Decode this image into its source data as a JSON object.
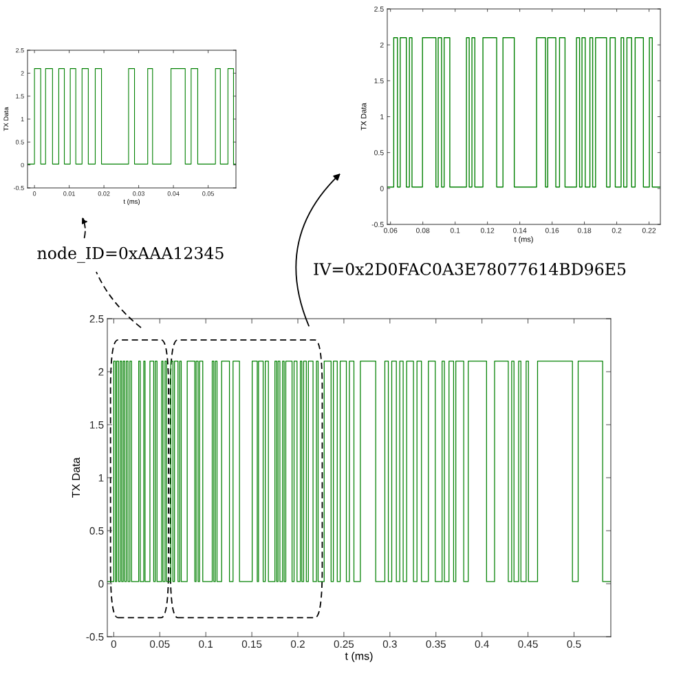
{
  "chart_data": [
    {
      "type": "step",
      "color": "#008000",
      "xlabel": "t (ms)",
      "ylabel": "TX Data",
      "xlim": [
        -0.002,
        0.058
      ],
      "xticks": [
        0,
        0.01,
        0.02,
        0.03,
        0.04,
        0.05
      ],
      "ylim": [
        -0.5,
        2.5
      ],
      "yticks": [
        -0.5,
        0,
        0.5,
        1,
        1.5,
        2,
        2.5
      ],
      "x": [
        -0.002,
        0,
        0.0018,
        0.0032,
        0.0052,
        0.007,
        0.0086,
        0.0103,
        0.0119,
        0.0137,
        0.0155,
        0.0175,
        0.0193,
        0.0271,
        0.0288,
        0.0326,
        0.034,
        0.0393,
        0.0434,
        0.0451,
        0.047,
        0.0521,
        0.0535,
        0.0557,
        0.0573,
        0.058
      ],
      "values": [
        0.02,
        2.1,
        0.02,
        2.1,
        0.02,
        2.1,
        0.02,
        2.1,
        0.02,
        2.1,
        0.02,
        2.1,
        0.02,
        2.1,
        0.02,
        2.1,
        0.02,
        2.1,
        0.02,
        2.1,
        0.02,
        2.1,
        0.02,
        2.1,
        0.02,
        0.02
      ]
    },
    {
      "type": "step",
      "color": "#008000",
      "xlabel": "t (ms)",
      "ylabel": "TX Data",
      "xlim": [
        0.058,
        0.227
      ],
      "xticks": [
        0.06,
        0.08,
        0.1,
        0.12,
        0.14,
        0.16,
        0.18,
        0.2,
        0.22
      ],
      "ylim": [
        -0.5,
        2.5
      ],
      "yticks": [
        -0.5,
        0,
        0.5,
        1,
        1.5,
        2,
        2.5
      ],
      "x": [
        0.058,
        0.062,
        0.0643,
        0.066,
        0.0698,
        0.0717,
        0.0733,
        0.0798,
        0.0881,
        0.0895,
        0.0916,
        0.0932,
        0.0967,
        0.107,
        0.1087,
        0.1104,
        0.1122,
        0.1172,
        0.1257,
        0.1296,
        0.1366,
        0.1504,
        0.1559,
        0.1573,
        0.1623,
        0.1646,
        0.168,
        0.1751,
        0.177,
        0.1785,
        0.1805,
        0.1834,
        0.1851,
        0.1869,
        0.1937,
        0.1959,
        0.1991,
        0.2027,
        0.2043,
        0.2063,
        0.2092,
        0.2114,
        0.2165,
        0.2202,
        0.222,
        0.227
      ],
      "values": [
        0.02,
        2.1,
        0.02,
        2.1,
        0.02,
        2.1,
        0.02,
        2.1,
        0.02,
        2.1,
        0.02,
        2.1,
        0.02,
        2.1,
        0.02,
        2.1,
        0.02,
        2.1,
        0.02,
        2.1,
        0.02,
        2.1,
        0.02,
        2.1,
        0.02,
        2.1,
        0.02,
        2.1,
        0.02,
        2.1,
        0.02,
        2.1,
        0.02,
        2.1,
        0.02,
        2.1,
        0.02,
        2.1,
        0.02,
        2.1,
        0.02,
        2.1,
        0.02,
        2.1,
        0.02,
        0.02
      ]
    },
    {
      "type": "step",
      "color": "#008000",
      "xlabel": "t (ms)",
      "ylabel": "TX Data",
      "xlim": [
        -0.007,
        0.54
      ],
      "xticks": [
        0,
        0.05,
        0.1,
        0.15,
        0.2,
        0.25,
        0.3,
        0.35,
        0.4,
        0.45,
        0.5
      ],
      "ylim": [
        -0.5,
        2.5
      ],
      "yticks": [
        -0.5,
        0,
        0.5,
        1,
        1.5,
        2,
        2.5
      ],
      "annotations": [
        "node_ID=0xAAA12345",
        "IV=0x2D0FAC0A3E78077614BD96E5"
      ],
      "x": [
        -0.007,
        0,
        0.0018,
        0.0032,
        0.0052,
        0.007,
        0.0086,
        0.0103,
        0.0119,
        0.0137,
        0.0155,
        0.0175,
        0.0193,
        0.0271,
        0.0288,
        0.0326,
        0.034,
        0.0393,
        0.0434,
        0.0451,
        0.047,
        0.0521,
        0.0535,
        0.0557,
        0.0573,
        0.062,
        0.0643,
        0.066,
        0.0698,
        0.0717,
        0.0733,
        0.0798,
        0.0881,
        0.0895,
        0.0916,
        0.0932,
        0.0967,
        0.107,
        0.1087,
        0.1104,
        0.1122,
        0.1172,
        0.1257,
        0.1296,
        0.1366,
        0.1504,
        0.1559,
        0.1573,
        0.1623,
        0.1646,
        0.168,
        0.1751,
        0.177,
        0.1785,
        0.1805,
        0.1834,
        0.1851,
        0.1869,
        0.1937,
        0.1959,
        0.1991,
        0.2027,
        0.2043,
        0.2063,
        0.2092,
        0.2114,
        0.2165,
        0.2202,
        0.222,
        0.2286,
        0.2361,
        0.2386,
        0.2428,
        0.246,
        0.2527,
        0.256,
        0.2609,
        0.2679,
        0.2846,
        0.2945,
        0.2983,
        0.302,
        0.307,
        0.3107,
        0.3144,
        0.3182,
        0.3256,
        0.3294,
        0.3343,
        0.3418,
        0.3493,
        0.3567,
        0.3592,
        0.3642,
        0.3692,
        0.3716,
        0.3802,
        0.3851,
        0.405,
        0.4137,
        0.4286,
        0.4323,
        0.4348,
        0.4398,
        0.4423,
        0.448,
        0.4505,
        0.4604,
        0.4983,
        0.5045,
        0.5311,
        0.54
      ],
      "values": [
        0.02,
        2.1,
        0.02,
        2.1,
        0.02,
        2.1,
        0.02,
        2.1,
        0.02,
        2.1,
        0.02,
        2.1,
        0.02,
        2.1,
        0.02,
        2.1,
        0.02,
        2.1,
        0.02,
        2.1,
        0.02,
        2.1,
        0.02,
        2.1,
        0.02,
        2.1,
        0.02,
        2.1,
        0.02,
        2.1,
        0.02,
        2.1,
        0.02,
        2.1,
        0.02,
        2.1,
        0.02,
        2.1,
        0.02,
        2.1,
        0.02,
        2.1,
        0.02,
        2.1,
        0.02,
        2.1,
        0.02,
        2.1,
        0.02,
        2.1,
        0.02,
        2.1,
        0.02,
        2.1,
        0.02,
        2.1,
        0.02,
        2.1,
        0.02,
        2.1,
        0.02,
        2.1,
        0.02,
        2.1,
        0.02,
        2.1,
        0.02,
        2.1,
        0.02,
        2.1,
        0.02,
        2.1,
        0.02,
        2.1,
        0.02,
        2.1,
        0.02,
        2.1,
        0.02,
        2.1,
        0.02,
        2.1,
        0.02,
        2.1,
        0.02,
        2.1,
        0.02,
        2.1,
        0.02,
        2.1,
        0.02,
        2.1,
        0.02,
        2.1,
        0.02,
        2.1,
        0.02,
        2.1,
        0.02,
        2.1,
        0.02,
        2.1,
        0.02,
        2.1,
        0.02,
        2.1,
        0.02,
        2.1,
        0.02,
        2.1,
        0.02,
        0.02
      ]
    }
  ]
}
